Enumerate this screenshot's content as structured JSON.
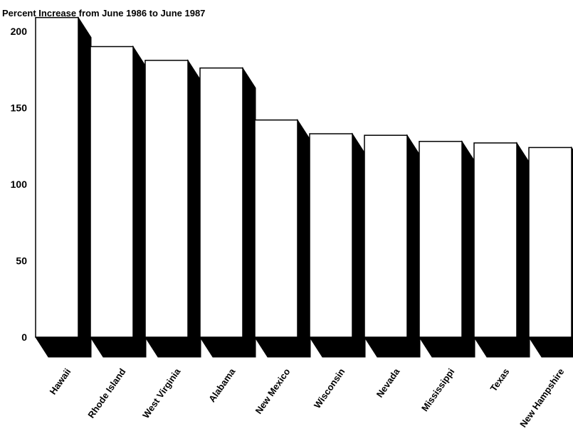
{
  "chart_data": {
    "type": "bar",
    "title": "Percent Increase from June 1986 to June 1987",
    "xlabel": "",
    "ylabel": "",
    "ylim": [
      0,
      200
    ],
    "yticks": [
      0,
      50,
      100,
      150,
      200
    ],
    "grid": false,
    "style": "3d-shadow",
    "bar_color": "#ffffff",
    "shadow_color": "#000000",
    "categories": [
      "Hawaii",
      "Rhode Island",
      "West Virginia",
      "Alabama",
      "New Mexico",
      "Wisconsin",
      "Nevada",
      "Mississippi",
      "Texas",
      "New Hampshire"
    ],
    "values": [
      209,
      190,
      181,
      176,
      142,
      133,
      132,
      128,
      127,
      124
    ]
  }
}
